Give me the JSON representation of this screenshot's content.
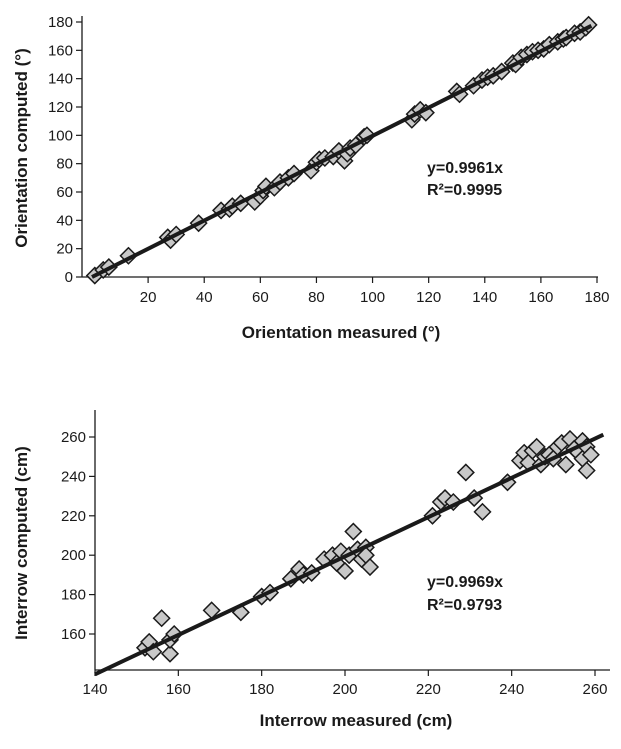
{
  "chart_data": [
    {
      "type": "scatter",
      "title": "",
      "xlabel": "Orientation measured (°)",
      "ylabel": "Orientation computed (°)",
      "xlim": [
        0,
        180
      ],
      "ylim": [
        0,
        180
      ],
      "x_ticks": [
        "20",
        "40",
        "60",
        "80",
        "100",
        "120",
        "140",
        "160",
        "180"
      ],
      "y_ticks": [
        "0",
        "20",
        "40",
        "60",
        "80",
        "100",
        "120",
        "140",
        "160",
        "180"
      ],
      "grid": false,
      "marker": "diamond",
      "marker_fill": "#c8c8c8",
      "marker_edge": "#1a1a1a",
      "line_color": "#1a1a1a",
      "fit_line": {
        "slope": 0.9961,
        "x_range": [
          0,
          178
        ]
      },
      "annotation": {
        "equation": "y=0.9961x",
        "r2": "R²=0.9995"
      },
      "points": [
        [
          1,
          1
        ],
        [
          4,
          5
        ],
        [
          6,
          7
        ],
        [
          13,
          15
        ],
        [
          27,
          28
        ],
        [
          28,
          26
        ],
        [
          30,
          30
        ],
        [
          38,
          38
        ],
        [
          46,
          47
        ],
        [
          49,
          48
        ],
        [
          50,
          50
        ],
        [
          53,
          52
        ],
        [
          58,
          53
        ],
        [
          60,
          57
        ],
        [
          61,
          61
        ],
        [
          62,
          64
        ],
        [
          65,
          63
        ],
        [
          67,
          67
        ],
        [
          70,
          70
        ],
        [
          72,
          73
        ],
        [
          78,
          75
        ],
        [
          80,
          81
        ],
        [
          81,
          83
        ],
        [
          83,
          84
        ],
        [
          86,
          85
        ],
        [
          88,
          89
        ],
        [
          90,
          82
        ],
        [
          91,
          87
        ],
        [
          92,
          91
        ],
        [
          94,
          93
        ],
        [
          97,
          99
        ],
        [
          98,
          100
        ],
        [
          114,
          111
        ],
        [
          115,
          115
        ],
        [
          117,
          118
        ],
        [
          119,
          116
        ],
        [
          130,
          131
        ],
        [
          131,
          129
        ],
        [
          136,
          135
        ],
        [
          139,
          139
        ],
        [
          141,
          141
        ],
        [
          143,
          142
        ],
        [
          146,
          145
        ],
        [
          150,
          151
        ],
        [
          151,
          150
        ],
        [
          153,
          155
        ],
        [
          155,
          157
        ],
        [
          157,
          159
        ],
        [
          159,
          160
        ],
        [
          161,
          161
        ],
        [
          163,
          164
        ],
        [
          166,
          166
        ],
        [
          168,
          168
        ],
        [
          169,
          169
        ],
        [
          172,
          172
        ],
        [
          174,
          173
        ],
        [
          176,
          176
        ],
        [
          177,
          178
        ]
      ]
    },
    {
      "type": "scatter",
      "title": "",
      "xlabel": "Interrow measured (cm)",
      "ylabel": "Interrow computed (cm)",
      "xlim": [
        140,
        262
      ],
      "ylim": [
        140,
        273
      ],
      "x_ticks": [
        "140",
        "160",
        "180",
        "200",
        "220",
        "240",
        "260"
      ],
      "y_ticks": [
        "160",
        "180",
        "200",
        "220",
        "240",
        "260"
      ],
      "grid": false,
      "marker": "diamond",
      "marker_fill": "#c8c8c8",
      "marker_edge": "#1a1a1a",
      "line_color": "#1a1a1a",
      "fit_line": {
        "slope": 0.9969,
        "x_range": [
          140,
          262
        ]
      },
      "annotation": {
        "equation": "y=0.9969x",
        "r2": "R²=0.9793"
      },
      "points": [
        [
          152,
          153
        ],
        [
          153,
          156
        ],
        [
          154,
          151
        ],
        [
          156,
          168
        ],
        [
          158,
          150
        ],
        [
          158,
          157
        ],
        [
          159,
          160
        ],
        [
          168,
          172
        ],
        [
          175,
          171
        ],
        [
          180,
          179
        ],
        [
          182,
          181
        ],
        [
          187,
          188
        ],
        [
          189,
          193
        ],
        [
          190,
          190
        ],
        [
          192,
          191
        ],
        [
          195,
          198
        ],
        [
          197,
          200
        ],
        [
          198,
          196
        ],
        [
          199,
          202
        ],
        [
          200,
          192
        ],
        [
          201,
          200
        ],
        [
          202,
          212
        ],
        [
          203,
          203
        ],
        [
          204,
          198
        ],
        [
          205,
          204
        ],
        [
          205,
          200
        ],
        [
          206,
          194
        ],
        [
          221,
          220
        ],
        [
          223,
          227
        ],
        [
          224,
          229
        ],
        [
          226,
          227
        ],
        [
          229,
          242
        ],
        [
          231,
          229
        ],
        [
          233,
          222
        ],
        [
          239,
          237
        ],
        [
          242,
          248
        ],
        [
          243,
          252
        ],
        [
          244,
          247
        ],
        [
          245,
          253
        ],
        [
          246,
          255
        ],
        [
          247,
          246
        ],
        [
          248,
          250
        ],
        [
          249,
          251
        ],
        [
          250,
          249
        ],
        [
          251,
          255
        ],
        [
          252,
          257
        ],
        [
          253,
          246
        ],
        [
          254,
          259
        ],
        [
          255,
          254
        ],
        [
          256,
          252
        ],
        [
          257,
          249
        ],
        [
          257,
          258
        ],
        [
          258,
          255
        ],
        [
          258,
          243
        ],
        [
          259,
          251
        ]
      ]
    }
  ]
}
